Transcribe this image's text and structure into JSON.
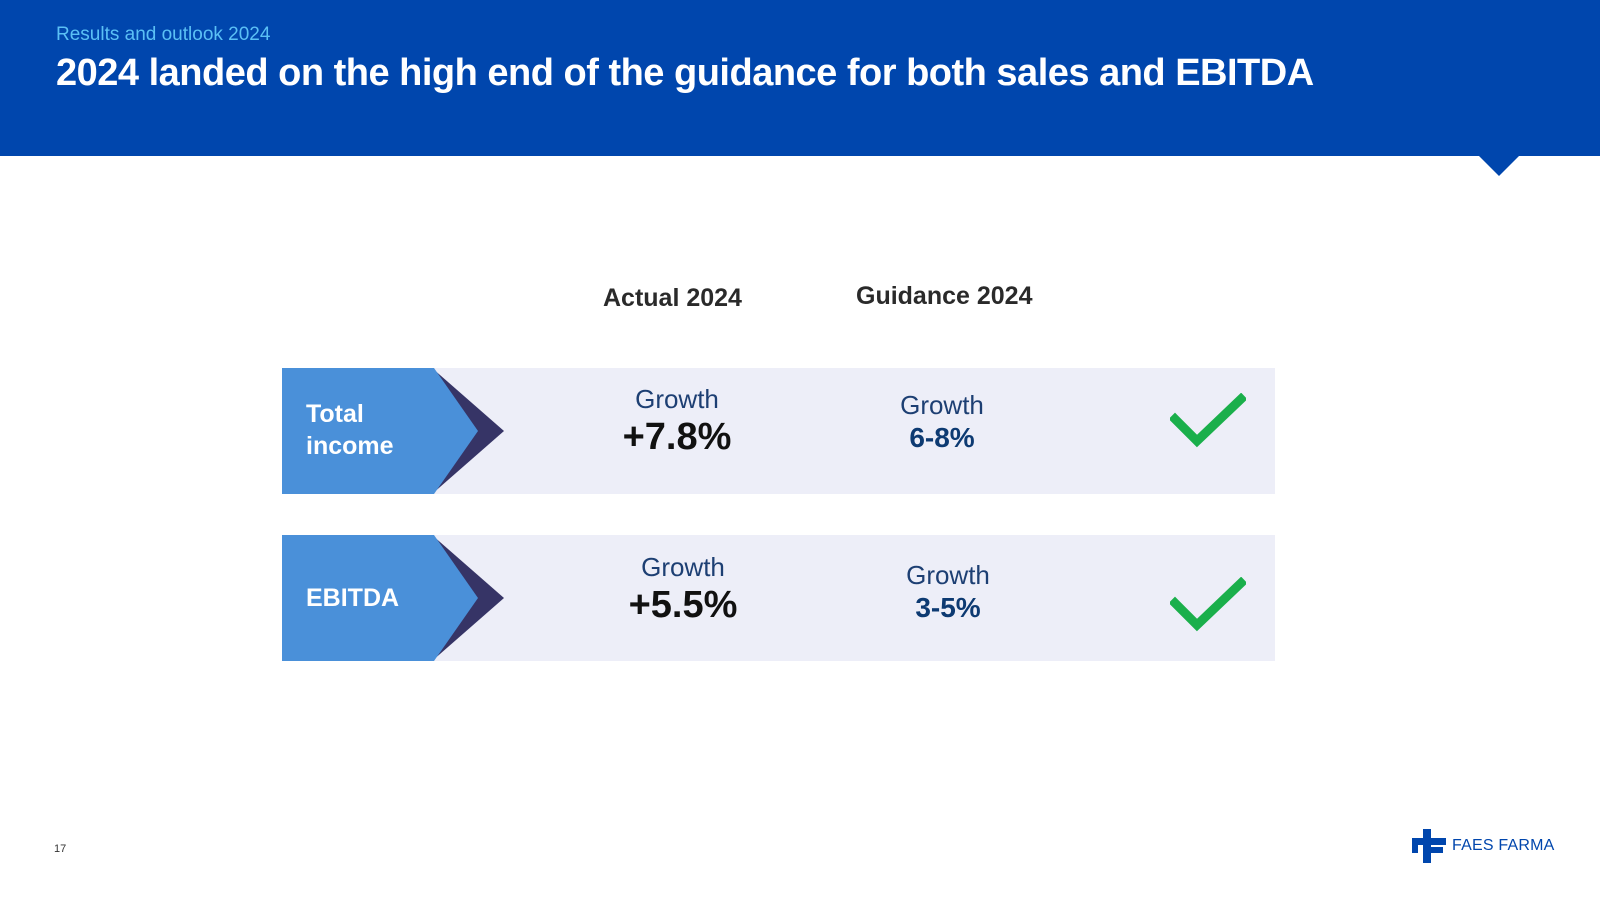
{
  "header": {
    "subtitle": "Results and outlook 2024",
    "title": "2024 landed on the high end of the guidance for both sales and EBITDA"
  },
  "table": {
    "columns": {
      "actual": "Actual 2024",
      "guidance": "Guidance 2024"
    },
    "rows": [
      {
        "label": "Total income",
        "actual_label": "Growth",
        "actual_value": "+7.8%",
        "guidance_label": "Growth",
        "guidance_value": "6-8%",
        "status": "check-icon"
      },
      {
        "label": "EBITDA",
        "actual_label": "Growth",
        "actual_value": "+5.5%",
        "guidance_label": "Growth",
        "guidance_value": "3-5%",
        "status": "check-icon"
      }
    ]
  },
  "footer": {
    "page_number": "17",
    "logo_text": "FAES FARMA"
  },
  "colors": {
    "header_bg": "#0046ad",
    "subtitle": "#5bc0f5",
    "row_bg": "#edeef8",
    "chevron_fill": "#4a90d9",
    "chevron_edge": "#363466",
    "check": "#1aaf4b"
  }
}
